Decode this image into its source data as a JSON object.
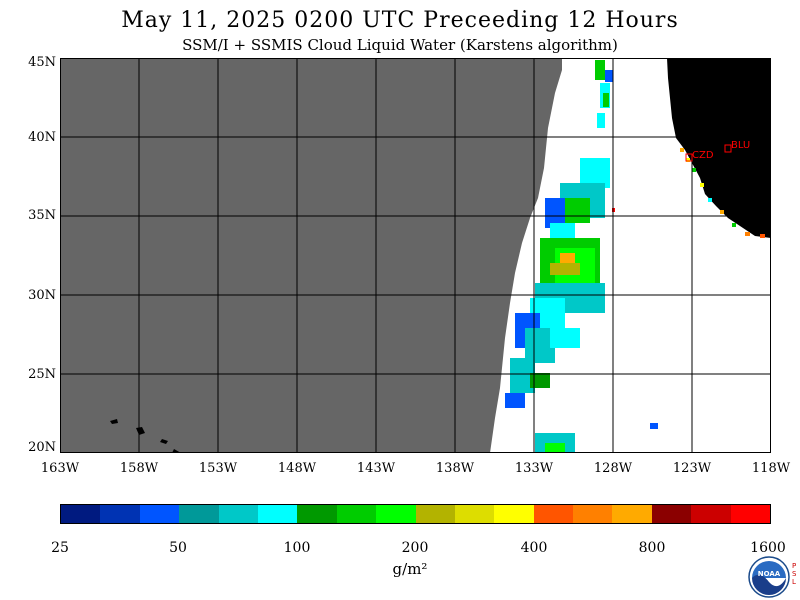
{
  "header": {
    "title": "May 11, 2025  0200 UTC  Preceeding 12 Hours",
    "subtitle": "SSM/I + SSMIS Cloud Liquid Water (Karstens algorithm)"
  },
  "map": {
    "lat_labels": [
      "45N",
      "40N",
      "35N",
      "30N",
      "25N",
      "20N"
    ],
    "lon_labels": [
      "163W",
      "158W",
      "153W",
      "148W",
      "143W",
      "138W",
      "133W",
      "128W",
      "123W",
      "118W"
    ],
    "stations": [
      {
        "code": "CZD",
        "color": "#ff0000"
      },
      {
        "code": "BLU",
        "color": "#ff0000"
      }
    ],
    "colors": {
      "no_data": "#666666",
      "land": "#000000",
      "background": "#ffffff",
      "grid": "#000000"
    }
  },
  "colorbar": {
    "colors": [
      "#001a80",
      "#0033b3",
      "#0055ff",
      "#009999",
      "#00c8c8",
      "#00ffff",
      "#009900",
      "#00cc00",
      "#00ff00",
      "#b3b300",
      "#dddd00",
      "#ffff00",
      "#ff5500",
      "#ff8000",
      "#ffaa00",
      "#8b0000",
      "#cc0000",
      "#ff0000"
    ],
    "ticks": [
      "25",
      "50",
      "100",
      "200",
      "400",
      "800",
      "1600"
    ],
    "units": "g/m²"
  },
  "logo": {
    "text": "NOAA",
    "side_text": "PSL"
  }
}
